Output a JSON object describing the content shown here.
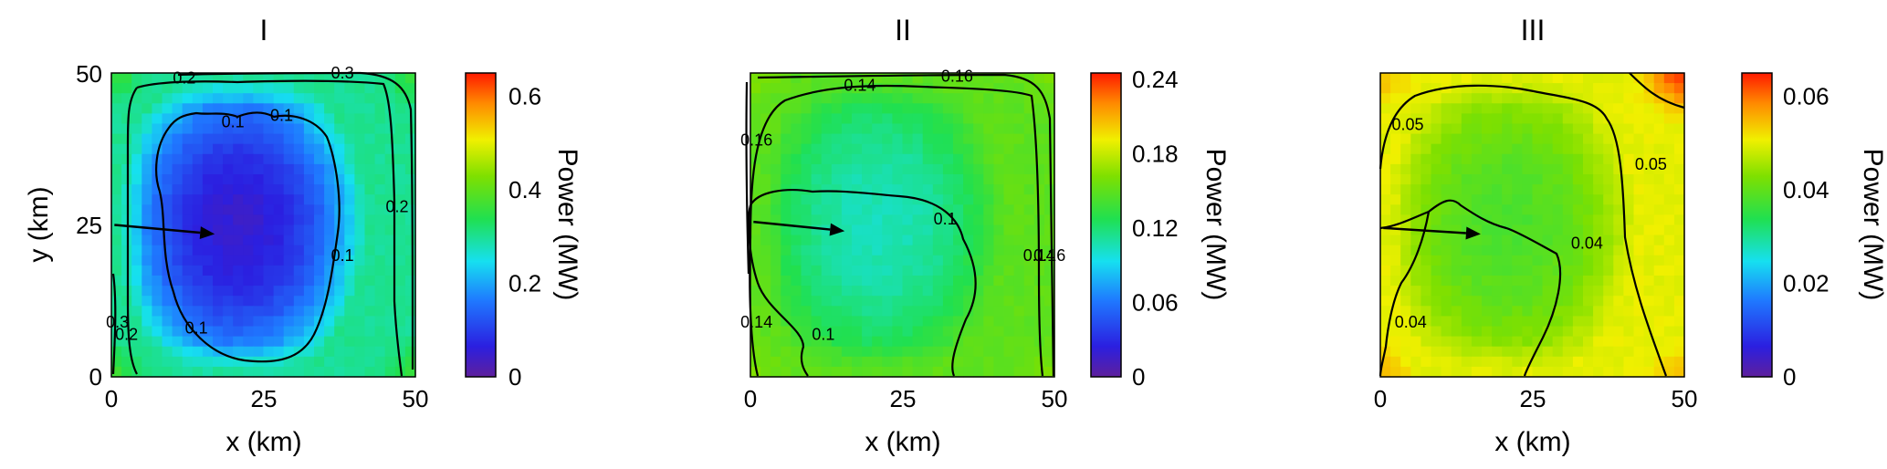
{
  "chart_data": [
    {
      "type": "heatmap",
      "title": "I",
      "xlabel": "x (km)",
      "ylabel": "y (km)",
      "x_ticks": [
        "0",
        "25",
        "50"
      ],
      "y_ticks": [
        "0",
        "25",
        "50"
      ],
      "xlim": [
        0,
        50
      ],
      "ylim": [
        0,
        50
      ],
      "colorbar": {
        "label": "Power (MW)",
        "range": [
          0,
          0.65
        ],
        "ticks": [
          "0",
          "0.2",
          "0.4",
          "0.6"
        ],
        "tick_values": [
          0,
          0.2,
          0.4,
          0.6
        ]
      },
      "field": {
        "center": 0.05,
        "edge": 0.3,
        "corner": 0.38
      },
      "contour_labels": [
        {
          "text": "0.2",
          "x": 12,
          "y": 49.2
        },
        {
          "text": "0.3",
          "x": 38,
          "y": 50
        },
        {
          "text": "0.1",
          "x": 20,
          "y": 42
        },
        {
          "text": "0.1",
          "x": 28,
          "y": 43
        },
        {
          "text": "0.2",
          "x": 47,
          "y": 28
        },
        {
          "text": "0.1",
          "x": 38,
          "y": 20
        },
        {
          "text": "0.1",
          "x": 14,
          "y": 8
        },
        {
          "text": "0.3",
          "x": 1,
          "y": 9
        },
        {
          "text": "0.2",
          "x": 2.5,
          "y": 7
        }
      ],
      "arrow": {
        "from": [
          0.5,
          25
        ],
        "to": [
          17,
          23.5
        ]
      }
    },
    {
      "type": "heatmap",
      "title": "II",
      "xlabel": "x (km)",
      "ylabel": "",
      "x_ticks": [
        "0",
        "25",
        "50"
      ],
      "y_ticks": [],
      "xlim": [
        0,
        50
      ],
      "ylim": [
        0,
        50
      ],
      "colorbar": {
        "label": "Power (MW)",
        "range": [
          0,
          0.245
        ],
        "ticks": [
          "0",
          "0.06",
          "0.12",
          "0.18",
          "0.24"
        ],
        "tick_values": [
          0,
          0.06,
          0.12,
          0.18,
          0.24
        ]
      },
      "field": {
        "center": 0.105,
        "edge": 0.15,
        "corner": 0.165
      },
      "contour_labels": [
        {
          "text": "0.14",
          "x": 18,
          "y": 48
        },
        {
          "text": "0.16",
          "x": 34,
          "y": 49.5
        },
        {
          "text": "0.16",
          "x": 1,
          "y": 39
        },
        {
          "text": "0.1",
          "x": 32,
          "y": 26
        },
        {
          "text": "0.14",
          "x": 47.5,
          "y": 20
        },
        {
          "text": "0.16",
          "x": 49.2,
          "y": 20
        },
        {
          "text": "0.1",
          "x": 12,
          "y": 7
        },
        {
          "text": "0.14",
          "x": 1,
          "y": 9
        }
      ],
      "arrow": {
        "from": [
          0.5,
          25.5
        ],
        "to": [
          15.5,
          24
        ]
      }
    },
    {
      "type": "heatmap",
      "title": "III",
      "xlabel": "x (km)",
      "ylabel": "",
      "x_ticks": [
        "0",
        "25",
        "50"
      ],
      "y_ticks": [],
      "xlim": [
        0,
        50
      ],
      "ylim": [
        0,
        50
      ],
      "colorbar": {
        "label": "Power (MW)",
        "range": [
          0,
          0.065
        ],
        "ticks": [
          "0",
          "0.02",
          "0.04",
          "0.06"
        ],
        "tick_values": [
          0,
          0.02,
          0.04,
          0.06
        ]
      },
      "field": {
        "center": 0.038,
        "edge": 0.05,
        "corner": 0.056,
        "hot_corner": 0.066
      },
      "contour_labels": [
        {
          "text": "0.05",
          "x": 4.5,
          "y": 41.5
        },
        {
          "text": "0.05",
          "x": 44.5,
          "y": 35
        },
        {
          "text": "0.04",
          "x": 34,
          "y": 22
        },
        {
          "text": "0.04",
          "x": 5,
          "y": 9
        }
      ],
      "arrow": {
        "from": [
          0.5,
          24.5
        ],
        "to": [
          16.5,
          23.5
        ]
      }
    }
  ]
}
